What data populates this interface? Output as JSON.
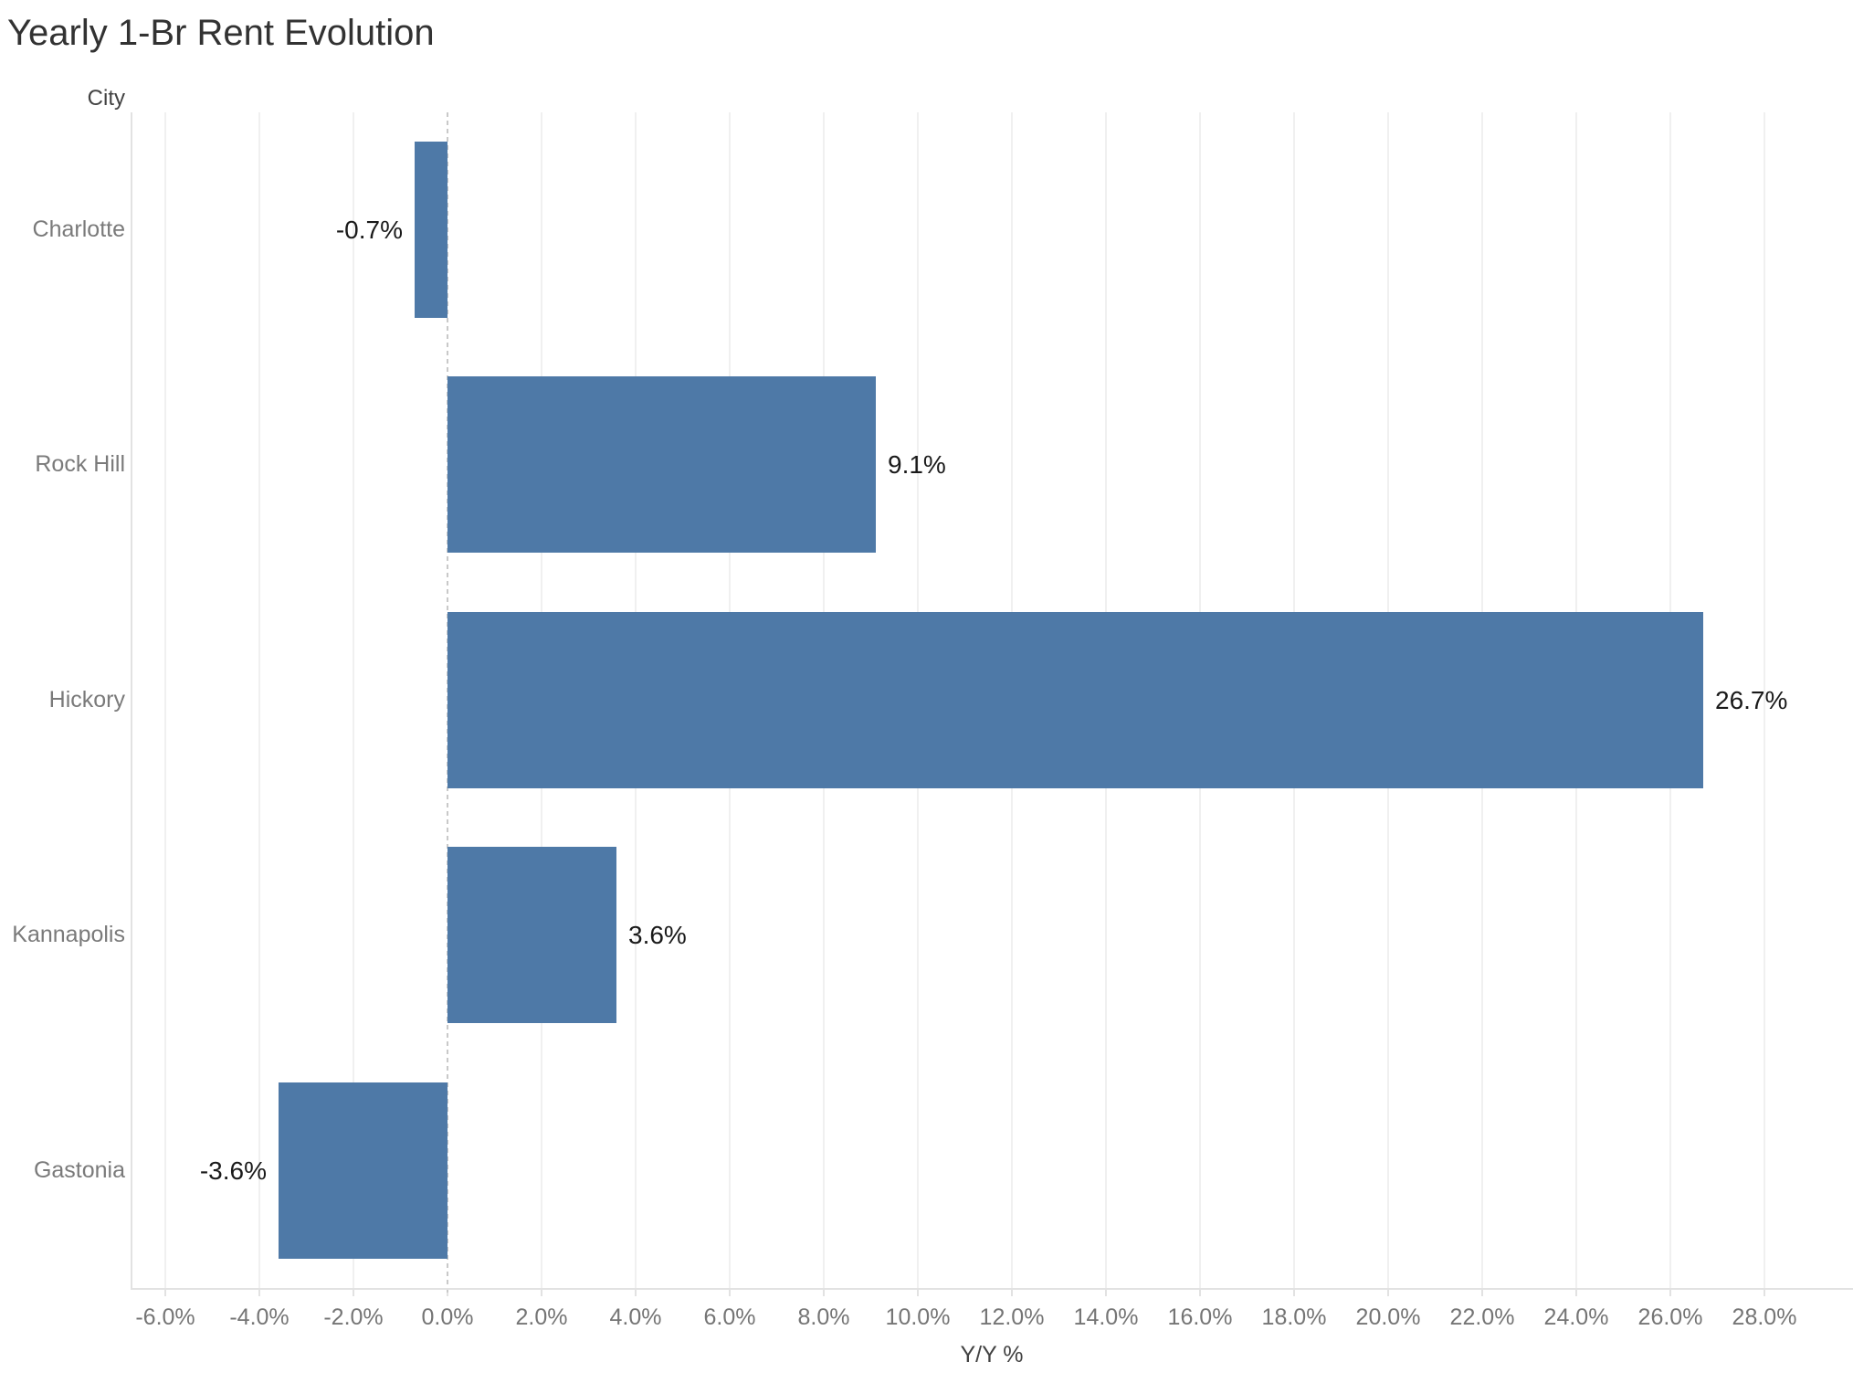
{
  "chart_data": {
    "type": "bar",
    "orientation": "horizontal",
    "title": "Yearly 1-Br Rent Evolution",
    "row_header": "City",
    "xlabel": "Y/Y %",
    "categories": [
      "Charlotte",
      "Rock Hill",
      "Hickory",
      "Kannapolis",
      "Gastonia"
    ],
    "values": [
      -0.7,
      9.1,
      26.7,
      3.6,
      -3.6
    ],
    "value_labels": [
      "-0.7%",
      "9.1%",
      "26.7%",
      "3.6%",
      "-3.6%"
    ],
    "x_ticks": [
      {
        "value": -6,
        "label": "-6.0%"
      },
      {
        "value": -4,
        "label": "-4.0%"
      },
      {
        "value": -2,
        "label": "-2.0%"
      },
      {
        "value": 0,
        "label": "0.0%"
      },
      {
        "value": 2,
        "label": "2.0%"
      },
      {
        "value": 4,
        "label": "4.0%"
      },
      {
        "value": 6,
        "label": "6.0%"
      },
      {
        "value": 8,
        "label": "8.0%"
      },
      {
        "value": 10,
        "label": "10.0%"
      },
      {
        "value": 12,
        "label": "12.0%"
      },
      {
        "value": 14,
        "label": "14.0%"
      },
      {
        "value": 16,
        "label": "16.0%"
      },
      {
        "value": 18,
        "label": "18.0%"
      },
      {
        "value": 20,
        "label": "20.0%"
      },
      {
        "value": 22,
        "label": "22.0%"
      },
      {
        "value": 24,
        "label": "24.0%"
      },
      {
        "value": 26,
        "label": "26.0%"
      },
      {
        "value": 28,
        "label": "28.0%"
      }
    ],
    "xlim": [
      -6.7,
      29.9
    ],
    "grid": true,
    "legend": false,
    "zero_line": "dashed"
  },
  "colors": {
    "bar": "#4e79a7",
    "grid_line": "#f0f0f0",
    "axis_line": "#e2e2e2",
    "zero_line": "#c9c9c9",
    "title_text": "#323232",
    "header_text": "#424242",
    "category_text": "#7a7a7a",
    "tick_text": "#757575",
    "value_text": "#1a1a1a",
    "background": "#ffffff"
  }
}
